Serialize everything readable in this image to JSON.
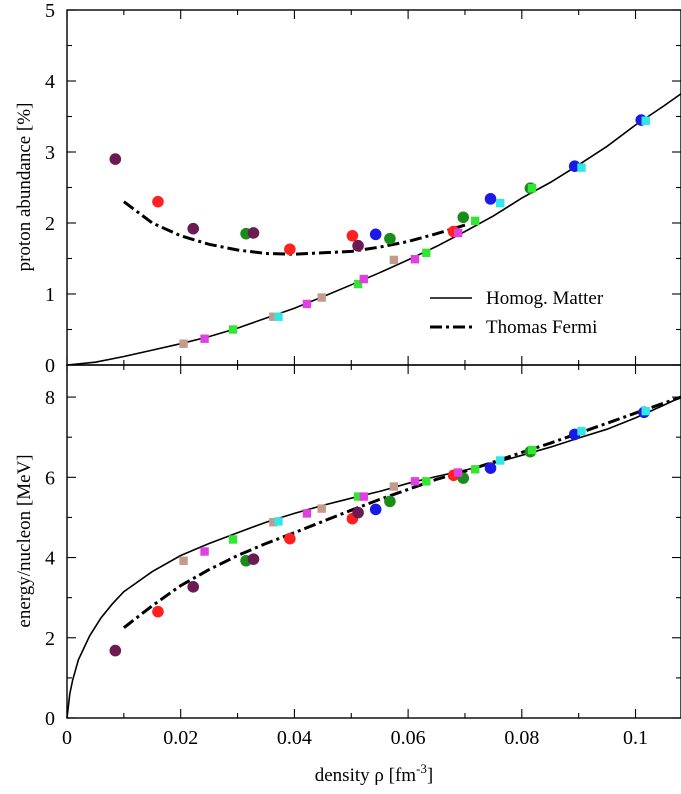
{
  "chart_data": [
    {
      "type": "line",
      "ylabel": "proton abundance [%]",
      "xlim": [
        0,
        0.108
      ],
      "ylim": [
        0,
        5
      ],
      "y_ticks": [
        "0",
        "1",
        "2",
        "3",
        "4",
        "5"
      ],
      "legend": {
        "placement": "right",
        "entries": [
          "Homog. Matter",
          "Thomas Fermi"
        ]
      },
      "lines": [
        {
          "name": "Homog. Matter",
          "style": "solid",
          "x": [
            0,
            0.005,
            0.01,
            0.015,
            0.02,
            0.025,
            0.03,
            0.035,
            0.04,
            0.045,
            0.05,
            0.055,
            0.06,
            0.065,
            0.07,
            0.075,
            0.08,
            0.085,
            0.09,
            0.095,
            0.1,
            0.105,
            0.108
          ],
          "y": [
            0,
            0.04,
            0.12,
            0.21,
            0.3,
            0.4,
            0.52,
            0.66,
            0.8,
            0.96,
            1.13,
            1.3,
            1.48,
            1.67,
            1.88,
            2.1,
            2.35,
            2.57,
            2.82,
            3.08,
            3.38,
            3.65,
            3.82
          ]
        },
        {
          "name": "Thomas Fermi",
          "style": "dash-dot",
          "x": [
            0.01,
            0.015,
            0.02,
            0.025,
            0.03,
            0.035,
            0.04,
            0.045,
            0.05,
            0.055,
            0.06,
            0.065,
            0.07
          ],
          "y": [
            2.3,
            2.0,
            1.82,
            1.7,
            1.62,
            1.57,
            1.56,
            1.58,
            1.6,
            1.66,
            1.74,
            1.85,
            1.97
          ]
        }
      ],
      "points": [
        {
          "shape": "circle",
          "color": "#6b1a52",
          "x": 0.0085,
          "y": 2.9
        },
        {
          "shape": "circle",
          "color": "#ff2020",
          "x": 0.016,
          "y": 2.3
        },
        {
          "shape": "circle",
          "color": "#6b1a52",
          "x": 0.0222,
          "y": 1.92
        },
        {
          "shape": "circle",
          "color": "#1a8c1a",
          "x": 0.0315,
          "y": 1.85
        },
        {
          "shape": "circle",
          "color": "#6b1a52",
          "x": 0.0328,
          "y": 1.86
        },
        {
          "shape": "circle",
          "color": "#ff2020",
          "x": 0.0392,
          "y": 1.63
        },
        {
          "shape": "circle",
          "color": "#ff2020",
          "x": 0.0502,
          "y": 1.82
        },
        {
          "shape": "circle",
          "color": "#6b1a52",
          "x": 0.0512,
          "y": 1.68
        },
        {
          "shape": "circle",
          "color": "#1a1ae6",
          "x": 0.0543,
          "y": 1.84
        },
        {
          "shape": "circle",
          "color": "#1a8c1a",
          "x": 0.0568,
          "y": 1.78
        },
        {
          "shape": "circle",
          "color": "#ff2020",
          "x": 0.068,
          "y": 1.88
        },
        {
          "shape": "circle",
          "color": "#1a8c1a",
          "x": 0.0697,
          "y": 2.08
        },
        {
          "shape": "circle",
          "color": "#1a1ae6",
          "x": 0.0745,
          "y": 2.34
        },
        {
          "shape": "circle",
          "color": "#1a8c1a",
          "x": 0.0815,
          "y": 2.49
        },
        {
          "shape": "circle",
          "color": "#1a1ae6",
          "x": 0.0893,
          "y": 2.8
        },
        {
          "shape": "circle",
          "color": "#1a1ae6",
          "x": 0.101,
          "y": 3.45
        },
        {
          "shape": "square",
          "color": "#c49a8c",
          "x": 0.0205,
          "y": 0.3
        },
        {
          "shape": "square",
          "color": "#e040e0",
          "x": 0.0242,
          "y": 0.37
        },
        {
          "shape": "square",
          "color": "#33e633",
          "x": 0.0292,
          "y": 0.5
        },
        {
          "shape": "square",
          "color": "#c49a8c",
          "x": 0.0363,
          "y": 0.68
        },
        {
          "shape": "square",
          "color": "#33e6e6",
          "x": 0.0372,
          "y": 0.68
        },
        {
          "shape": "square",
          "color": "#e040e0",
          "x": 0.0422,
          "y": 0.86
        },
        {
          "shape": "square",
          "color": "#c49a8c",
          "x": 0.0448,
          "y": 0.95
        },
        {
          "shape": "square",
          "color": "#33e633",
          "x": 0.0512,
          "y": 1.14
        },
        {
          "shape": "square",
          "color": "#e040e0",
          "x": 0.0522,
          "y": 1.21
        },
        {
          "shape": "square",
          "color": "#c49a8c",
          "x": 0.0575,
          "y": 1.48
        },
        {
          "shape": "square",
          "color": "#e040e0",
          "x": 0.0612,
          "y": 1.49
        },
        {
          "shape": "square",
          "color": "#33e633",
          "x": 0.0632,
          "y": 1.58
        },
        {
          "shape": "square",
          "color": "#e040e0",
          "x": 0.0688,
          "y": 1.86
        },
        {
          "shape": "square",
          "color": "#33e633",
          "x": 0.0718,
          "y": 2.03
        },
        {
          "shape": "square",
          "color": "#33e6e6",
          "x": 0.0762,
          "y": 2.28
        },
        {
          "shape": "square",
          "color": "#33e633",
          "x": 0.0818,
          "y": 2.49
        },
        {
          "shape": "square",
          "color": "#33e6e6",
          "x": 0.0905,
          "y": 2.78
        },
        {
          "shape": "square",
          "color": "#33e6e6",
          "x": 0.1018,
          "y": 3.44
        }
      ]
    },
    {
      "type": "line",
      "xlabel_text": "density  ρ  [fm",
      "xlabel_sup": "-3",
      "xlabel_end": "]",
      "ylabel": "energy/nucleon [MeV]",
      "xlim": [
        0,
        0.108
      ],
      "ylim": [
        0,
        8.8
      ],
      "x_ticks": [
        "0",
        "0.02",
        "0.04",
        "0.06",
        "0.08",
        "0.1"
      ],
      "y_ticks": [
        "0",
        "2",
        "4",
        "6",
        "8"
      ],
      "lines": [
        {
          "name": "Homog. Matter",
          "style": "solid",
          "x": [
            0,
            0.0005,
            0.001,
            0.002,
            0.004,
            0.006,
            0.008,
            0.01,
            0.015,
            0.02,
            0.025,
            0.03,
            0.035,
            0.04,
            0.045,
            0.05,
            0.055,
            0.06,
            0.065,
            0.07,
            0.075,
            0.08,
            0.085,
            0.09,
            0.095,
            0.1,
            0.105,
            0.108
          ],
          "y": [
            0,
            0.6,
            0.95,
            1.45,
            2.05,
            2.5,
            2.85,
            3.15,
            3.65,
            4.05,
            4.35,
            4.62,
            4.88,
            5.1,
            5.3,
            5.48,
            5.65,
            5.85,
            6.02,
            6.18,
            6.35,
            6.55,
            6.75,
            6.98,
            7.2,
            7.48,
            7.8,
            8.0
          ]
        },
        {
          "name": "Thomas Fermi",
          "style": "dash-dot",
          "x": [
            0.01,
            0.015,
            0.02,
            0.025,
            0.03,
            0.035,
            0.04,
            0.045,
            0.05,
            0.055,
            0.06,
            0.065,
            0.07,
            0.075,
            0.08,
            0.085,
            0.09,
            0.095,
            0.1,
            0.105,
            0.108
          ],
          "y": [
            2.25,
            2.8,
            3.3,
            3.7,
            4.05,
            4.35,
            4.62,
            4.9,
            5.18,
            5.45,
            5.7,
            5.95,
            6.15,
            6.38,
            6.62,
            6.85,
            7.1,
            7.35,
            7.6,
            7.85,
            8.0
          ]
        }
      ],
      "points": [
        {
          "shape": "circle",
          "color": "#6b1a52",
          "x": 0.0085,
          "y": 1.68
        },
        {
          "shape": "circle",
          "color": "#ff2020",
          "x": 0.016,
          "y": 2.65
        },
        {
          "shape": "circle",
          "color": "#6b1a52",
          "x": 0.0222,
          "y": 3.27
        },
        {
          "shape": "circle",
          "color": "#1a8c1a",
          "x": 0.0315,
          "y": 3.92
        },
        {
          "shape": "circle",
          "color": "#6b1a52",
          "x": 0.0328,
          "y": 3.96
        },
        {
          "shape": "circle",
          "color": "#ff2020",
          "x": 0.0392,
          "y": 4.47
        },
        {
          "shape": "circle",
          "color": "#ff2020",
          "x": 0.0502,
          "y": 4.97
        },
        {
          "shape": "circle",
          "color": "#6b1a52",
          "x": 0.0512,
          "y": 5.12
        },
        {
          "shape": "circle",
          "color": "#1a1ae6",
          "x": 0.0543,
          "y": 5.2
        },
        {
          "shape": "circle",
          "color": "#1a8c1a",
          "x": 0.0568,
          "y": 5.4
        },
        {
          "shape": "circle",
          "color": "#ff2020",
          "x": 0.068,
          "y": 6.05
        },
        {
          "shape": "circle",
          "color": "#1a8c1a",
          "x": 0.0697,
          "y": 5.98
        },
        {
          "shape": "circle",
          "color": "#1a1ae6",
          "x": 0.0745,
          "y": 6.23
        },
        {
          "shape": "circle",
          "color": "#1a8c1a",
          "x": 0.0815,
          "y": 6.64
        },
        {
          "shape": "circle",
          "color": "#1a1ae6",
          "x": 0.0893,
          "y": 7.07
        },
        {
          "shape": "circle",
          "color": "#1a1ae6",
          "x": 0.1015,
          "y": 7.62
        },
        {
          "shape": "square",
          "color": "#c49a8c",
          "x": 0.0205,
          "y": 3.92
        },
        {
          "shape": "square",
          "color": "#e040e0",
          "x": 0.0242,
          "y": 4.15
        },
        {
          "shape": "square",
          "color": "#33e633",
          "x": 0.0292,
          "y": 4.45
        },
        {
          "shape": "square",
          "color": "#c49a8c",
          "x": 0.0363,
          "y": 4.88
        },
        {
          "shape": "square",
          "color": "#33e6e6",
          "x": 0.0372,
          "y": 4.9
        },
        {
          "shape": "square",
          "color": "#e040e0",
          "x": 0.0422,
          "y": 5.1
        },
        {
          "shape": "square",
          "color": "#c49a8c",
          "x": 0.0448,
          "y": 5.22
        },
        {
          "shape": "square",
          "color": "#33e633",
          "x": 0.0512,
          "y": 5.52
        },
        {
          "shape": "square",
          "color": "#e040e0",
          "x": 0.0522,
          "y": 5.52
        },
        {
          "shape": "square",
          "color": "#c49a8c",
          "x": 0.0575,
          "y": 5.77
        },
        {
          "shape": "square",
          "color": "#e040e0",
          "x": 0.0612,
          "y": 5.9
        },
        {
          "shape": "square",
          "color": "#33e633",
          "x": 0.0632,
          "y": 5.9
        },
        {
          "shape": "square",
          "color": "#e040e0",
          "x": 0.0688,
          "y": 6.12
        },
        {
          "shape": "square",
          "color": "#33e633",
          "x": 0.0718,
          "y": 6.2
        },
        {
          "shape": "square",
          "color": "#33e6e6",
          "x": 0.0762,
          "y": 6.42
        },
        {
          "shape": "square",
          "color": "#33e633",
          "x": 0.0818,
          "y": 6.68
        },
        {
          "shape": "square",
          "color": "#33e6e6",
          "x": 0.0905,
          "y": 7.15
        },
        {
          "shape": "square",
          "color": "#33e6e6",
          "x": 0.1018,
          "y": 7.65
        }
      ]
    }
  ]
}
